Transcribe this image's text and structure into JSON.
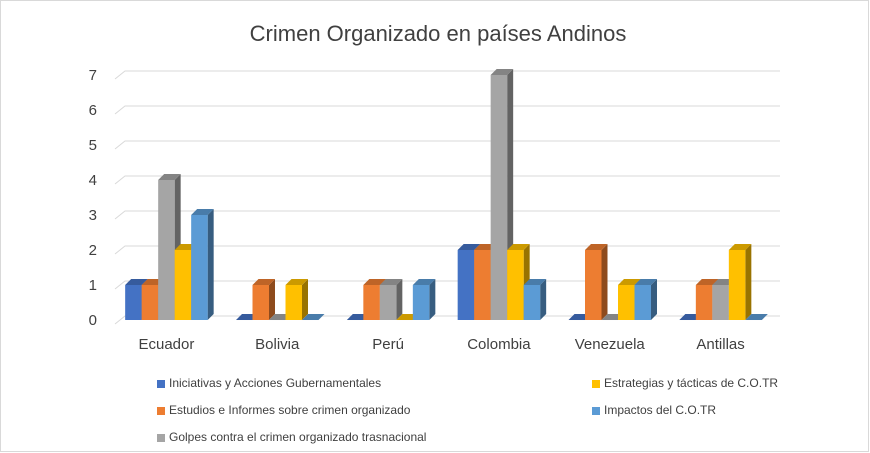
{
  "chart_data": {
    "type": "bar3d",
    "title": "Crimen Organizado en países Andinos",
    "categories": [
      "Ecuador",
      "Bolivia",
      "Perú",
      "Colombia",
      "Venezuela",
      "Antillas"
    ],
    "series": [
      {
        "name": "Iniciativas y Acciones Gubernamentales",
        "color": "#4472c4",
        "values": [
          1,
          0,
          0,
          2,
          0,
          0
        ]
      },
      {
        "name": "Estudios e Informes sobre crimen organizado",
        "color": "#ed7d31",
        "values": [
          1,
          1,
          1,
          2,
          2,
          1
        ]
      },
      {
        "name": "Golpes contra el crimen organizado trasnacional",
        "color": "#a5a5a5",
        "values": [
          4,
          0,
          1,
          7,
          0,
          1
        ]
      },
      {
        "name": "Estrategias y tácticas de C.O.TR",
        "color": "#ffc000",
        "values": [
          2,
          1,
          0,
          2,
          1,
          2
        ]
      },
      {
        "name": "Impactos del C.O.TR",
        "color": "#5b9bd5",
        "values": [
          3,
          0,
          1,
          1,
          1,
          0
        ]
      }
    ],
    "ylim": [
      0,
      7
    ],
    "yticks": [
      0,
      1,
      2,
      3,
      4,
      5,
      6,
      7
    ],
    "grid": true,
    "legend": "bottom"
  }
}
